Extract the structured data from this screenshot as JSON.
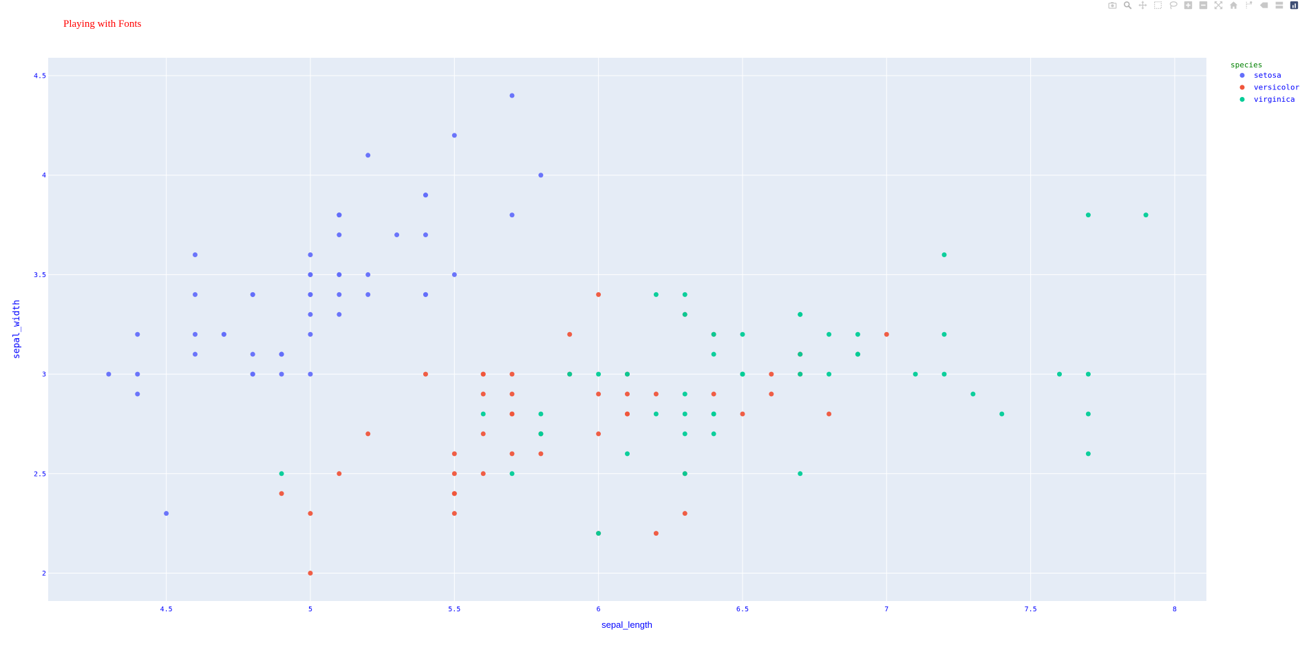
{
  "colors": {
    "setosa": "#636efa",
    "versicolor": "#ef553b",
    "virginica": "#00cc96",
    "plot_bg": "#e5ecf6",
    "grid": "#ffffff",
    "title_color": "#ff0000",
    "axis_title_color": "#0000ff",
    "tick_color": "#0000ff",
    "legend_title_color": "#008000",
    "legend_text_color": "#0000ff"
  },
  "modebar": {
    "icons": [
      "camera-icon",
      "zoom-icon",
      "pan-icon",
      "box-select-icon",
      "lasso-icon",
      "zoom-in-icon",
      "zoom-out-icon",
      "autoscale-icon",
      "reset-axes-icon",
      "spike-lines-icon",
      "hover-closest-icon",
      "hover-compare-icon",
      "plotly-logo-icon"
    ]
  },
  "chart_data": {
    "type": "scatter",
    "title": "Playing with Fonts",
    "xlabel": "sepal_length",
    "ylabel": "sepal_width",
    "xlim": [
      4.09,
      8.11
    ],
    "ylim": [
      1.86,
      4.59
    ],
    "xticks": [
      4.5,
      5,
      5.5,
      6,
      6.5,
      7,
      7.5,
      8
    ],
    "xtick_labels": [
      "4.5",
      "5",
      "5.5",
      "6",
      "6.5",
      "7",
      "7.5",
      "8"
    ],
    "yticks": [
      2,
      2.5,
      3,
      3.5,
      4,
      4.5
    ],
    "ytick_labels": [
      "2",
      "2.5",
      "3",
      "3.5",
      "4",
      "4.5"
    ],
    "grid": true,
    "legend": {
      "title": "species",
      "position": "right"
    },
    "series": [
      {
        "name": "setosa",
        "color": "#636efa",
        "x": [
          5.1,
          4.9,
          4.7,
          4.6,
          5.0,
          5.4,
          4.6,
          5.0,
          4.4,
          4.9,
          5.4,
          4.8,
          4.8,
          4.3,
          5.8,
          5.7,
          5.4,
          5.1,
          5.7,
          5.1,
          5.4,
          5.1,
          4.6,
          5.1,
          4.8,
          5.0,
          5.0,
          5.2,
          5.2,
          4.7,
          4.8,
          5.4,
          5.2,
          5.5,
          4.9,
          5.0,
          5.5,
          4.9,
          4.4,
          5.1,
          5.0,
          4.5,
          4.4,
          5.0,
          5.1,
          4.8,
          5.1,
          4.6,
          5.3,
          5.0
        ],
        "y": [
          3.5,
          3.0,
          3.2,
          3.1,
          3.6,
          3.9,
          3.4,
          3.4,
          2.9,
          3.1,
          3.7,
          3.4,
          3.0,
          3.0,
          4.0,
          4.4,
          3.9,
          3.5,
          3.8,
          3.8,
          3.4,
          3.7,
          3.6,
          3.3,
          3.4,
          3.0,
          3.4,
          3.5,
          3.4,
          3.2,
          3.1,
          3.4,
          4.1,
          4.2,
          3.1,
          3.2,
          3.5,
          3.1,
          3.0,
          3.4,
          3.5,
          2.3,
          3.2,
          3.5,
          3.8,
          3.0,
          3.8,
          3.2,
          3.7,
          3.3
        ]
      },
      {
        "name": "versicolor",
        "color": "#ef553b",
        "x": [
          7.0,
          6.4,
          6.9,
          5.5,
          6.5,
          5.7,
          6.3,
          4.9,
          6.6,
          5.2,
          5.0,
          5.9,
          6.0,
          6.1,
          5.6,
          6.7,
          5.6,
          5.8,
          6.2,
          5.6,
          5.9,
          6.1,
          6.3,
          6.1,
          6.4,
          6.6,
          6.8,
          6.7,
          6.0,
          5.7,
          5.5,
          5.5,
          5.8,
          6.0,
          5.4,
          6.0,
          6.7,
          6.3,
          5.6,
          5.5,
          5.5,
          6.1,
          5.8,
          5.0,
          5.6,
          5.7,
          5.7,
          6.2,
          5.1,
          5.7
        ],
        "y": [
          3.2,
          3.2,
          3.1,
          2.3,
          2.8,
          2.8,
          3.3,
          2.4,
          2.9,
          2.7,
          2.0,
          3.0,
          2.2,
          2.9,
          2.9,
          3.1,
          3.0,
          2.7,
          2.2,
          2.5,
          3.2,
          2.8,
          2.5,
          2.8,
          2.9,
          3.0,
          2.8,
          3.0,
          2.9,
          2.6,
          2.4,
          2.4,
          2.7,
          2.7,
          3.0,
          3.4,
          3.1,
          2.3,
          3.0,
          2.5,
          2.6,
          3.0,
          2.6,
          2.3,
          2.7,
          3.0,
          2.9,
          2.9,
          2.5,
          2.8
        ]
      },
      {
        "name": "virginica",
        "color": "#00cc96",
        "x": [
          6.3,
          5.8,
          7.1,
          6.3,
          6.5,
          7.6,
          4.9,
          7.3,
          6.7,
          7.2,
          6.5,
          6.4,
          6.8,
          5.7,
          5.8,
          6.4,
          6.5,
          7.7,
          7.7,
          6.0,
          6.9,
          5.6,
          7.7,
          6.3,
          6.7,
          7.2,
          6.2,
          6.1,
          6.4,
          7.2,
          7.4,
          7.9,
          6.4,
          6.3,
          6.1,
          7.7,
          6.3,
          6.4,
          6.0,
          6.9,
          6.7,
          6.9,
          5.8,
          6.8,
          6.7,
          6.7,
          6.3,
          6.5,
          6.2,
          5.9
        ],
        "y": [
          3.3,
          2.7,
          3.0,
          2.9,
          3.0,
          3.0,
          2.5,
          2.9,
          2.5,
          3.6,
          3.2,
          2.7,
          3.0,
          2.5,
          2.8,
          3.2,
          3.0,
          3.8,
          2.6,
          2.2,
          3.2,
          2.8,
          2.8,
          2.7,
          3.3,
          3.2,
          2.8,
          3.0,
          2.8,
          3.0,
          2.8,
          3.8,
          2.8,
          2.8,
          2.6,
          3.0,
          3.4,
          3.1,
          3.0,
          3.1,
          3.1,
          3.1,
          2.7,
          3.2,
          3.3,
          3.0,
          2.5,
          3.0,
          3.4,
          3.0
        ]
      }
    ]
  }
}
